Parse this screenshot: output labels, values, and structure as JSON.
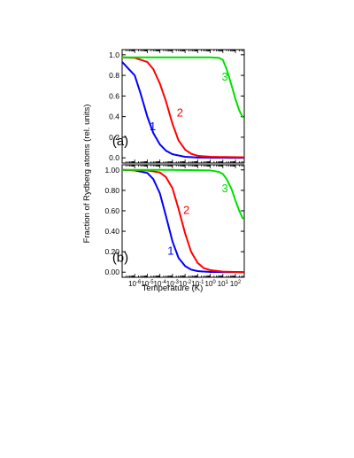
{
  "chart_data": [
    {
      "type": "line",
      "panel_label": "(a)",
      "xlabel": "Temperature (K)",
      "ylabel": "Fraction of Rydberg atoms (rel. units)",
      "x_scale": "log",
      "xlim": [
        1e-07,
        500
      ],
      "ylim": [
        -0.05,
        1.05
      ],
      "x_ticks": [
        "10-6",
        "10-5",
        "10-4",
        "10-3",
        "10-2",
        "10-1",
        "100",
        "101",
        "102"
      ],
      "y_ticks": [
        "0.0",
        "0.2",
        "0.4",
        "0.6",
        "0.8",
        "1.0"
      ],
      "series": [
        {
          "label": "1",
          "color": "#0000ff",
          "points": [
            [
              1e-07,
              0.93
            ],
            [
              1e-06,
              0.8
            ],
            [
              3e-06,
              0.62
            ],
            [
              1e-05,
              0.4
            ],
            [
              3e-05,
              0.24
            ],
            [
              0.0001,
              0.13
            ],
            [
              0.0003,
              0.07
            ],
            [
              0.001,
              0.035
            ],
            [
              0.01,
              0.01
            ],
            [
              0.1,
              0.003
            ],
            [
              500,
              0.0
            ]
          ]
        },
        {
          "label": "2",
          "color": "#ff0000",
          "points": [
            [
              1e-07,
              0.975
            ],
            [
              1e-06,
              0.97
            ],
            [
              1e-05,
              0.93
            ],
            [
              3e-05,
              0.86
            ],
            [
              0.0001,
              0.72
            ],
            [
              0.0003,
              0.55
            ],
            [
              0.001,
              0.33
            ],
            [
              0.003,
              0.17
            ],
            [
              0.01,
              0.08
            ],
            [
              0.03,
              0.04
            ],
            [
              0.1,
              0.02
            ],
            [
              1,
              0.01
            ],
            [
              500,
              0.005
            ]
          ]
        },
        {
          "label": "3",
          "color": "#00e000",
          "points": [
            [
              1e-07,
              0.975
            ],
            [
              1e-05,
              0.975
            ],
            [
              0.001,
              0.975
            ],
            [
              1,
              0.975
            ],
            [
              5,
              0.97
            ],
            [
              10,
              0.95
            ],
            [
              20,
              0.86
            ],
            [
              50,
              0.7
            ],
            [
              100,
              0.57
            ],
            [
              200,
              0.46
            ],
            [
              400,
              0.39
            ]
          ]
        }
      ]
    },
    {
      "type": "line",
      "panel_label": "(b)",
      "xlabel": "Temperature (K)",
      "ylabel": "Fraction of Rydberg atoms (rel. units)",
      "x_scale": "log",
      "xlim": [
        1e-07,
        500
      ],
      "ylim": [
        -0.05,
        1.05
      ],
      "x_ticks": [
        "10-6",
        "10-5",
        "10-4",
        "10-3",
        "10-2",
        "10-1",
        "100",
        "101",
        "102"
      ],
      "y_ticks": [
        "0.00",
        "0.20",
        "0.40",
        "0.60",
        "0.80",
        "1.00"
      ],
      "series": [
        {
          "label": "1",
          "color": "#0000ff",
          "points": [
            [
              1e-07,
              1.0
            ],
            [
              1e-06,
              0.995
            ],
            [
              1e-05,
              0.97
            ],
            [
              3e-05,
              0.91
            ],
            [
              0.0001,
              0.77
            ],
            [
              0.0003,
              0.55
            ],
            [
              0.001,
              0.3
            ],
            [
              0.003,
              0.14
            ],
            [
              0.01,
              0.06
            ],
            [
              0.03,
              0.025
            ],
            [
              0.1,
              0.01
            ],
            [
              1,
              0.002
            ],
            [
              500,
              0.0
            ]
          ]
        },
        {
          "label": "2",
          "color": "#ff0000",
          "points": [
            [
              1e-07,
              1.0
            ],
            [
              1e-05,
              0.995
            ],
            [
              0.0001,
              0.975
            ],
            [
              0.0003,
              0.93
            ],
            [
              0.001,
              0.82
            ],
            [
              0.003,
              0.62
            ],
            [
              0.01,
              0.38
            ],
            [
              0.03,
              0.2
            ],
            [
              0.1,
              0.09
            ],
            [
              0.3,
              0.04
            ],
            [
              1,
              0.02
            ],
            [
              10,
              0.005
            ],
            [
              500,
              0.0
            ]
          ]
        },
        {
          "label": "3",
          "color": "#00e000",
          "points": [
            [
              1e-07,
              1.0
            ],
            [
              0.001,
              1.0
            ],
            [
              1,
              0.995
            ],
            [
              5,
              0.98
            ],
            [
              10,
              0.96
            ],
            [
              20,
              0.91
            ],
            [
              50,
              0.81
            ],
            [
              100,
              0.7
            ],
            [
              200,
              0.6
            ],
            [
              400,
              0.52
            ]
          ]
        }
      ]
    }
  ]
}
